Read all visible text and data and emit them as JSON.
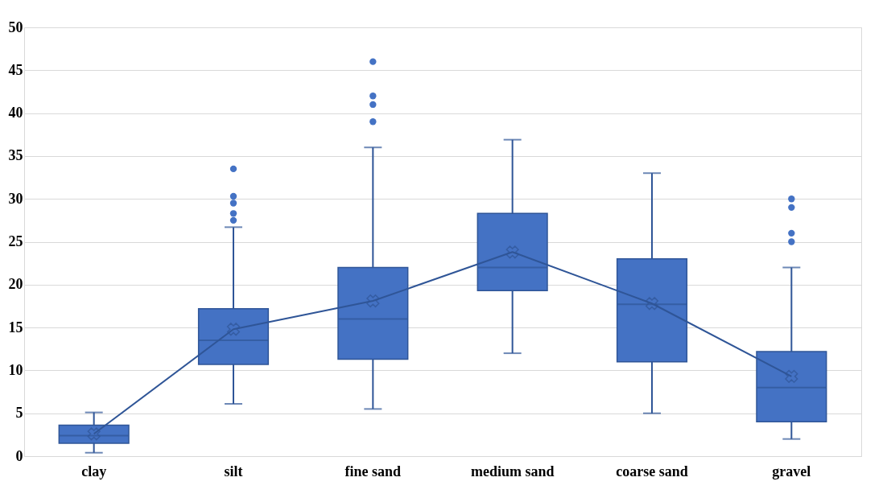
{
  "chart_data": {
    "type": "box",
    "categories": [
      "clay",
      "silt",
      "fine sand",
      "medium sand",
      "coarse sand",
      "gravel"
    ],
    "boxes": [
      {
        "low": 0.4,
        "q1": 1.5,
        "median": 2.4,
        "q3": 3.6,
        "high": 5.1
      },
      {
        "low": 6.1,
        "q1": 10.7,
        "median": 13.5,
        "q3": 17.2,
        "high": 26.7,
        "outliers": [
          33.5,
          30.3,
          29.5,
          28.3,
          27.5
        ]
      },
      {
        "low": 5.5,
        "q1": 11.3,
        "median": 16,
        "q3": 22,
        "high": 36,
        "outliers": [
          46,
          42,
          41,
          39
        ]
      },
      {
        "low": 12,
        "q1": 19.3,
        "median": 22,
        "q3": 28.3,
        "high": 36.9
      },
      {
        "low": 5,
        "q1": 11,
        "median": 17.7,
        "q3": 23,
        "high": 33
      },
      {
        "low": 2,
        "q1": 4,
        "median": 8,
        "q3": 12.2,
        "high": 22,
        "outliers": [
          30,
          29,
          26,
          25
        ]
      }
    ],
    "color": "#4472c4",
    "series": [
      {
        "type": "line",
        "color": "#2f5597",
        "marker": "cross",
        "values": [
          2.6,
          14.8,
          18.1,
          23.8,
          17.8,
          9.3
        ]
      }
    ],
    "ylim": [
      0,
      50
    ],
    "yticks": [
      0,
      5,
      10,
      15,
      20,
      25,
      30,
      35,
      40,
      45,
      50
    ],
    "grid": "y"
  }
}
